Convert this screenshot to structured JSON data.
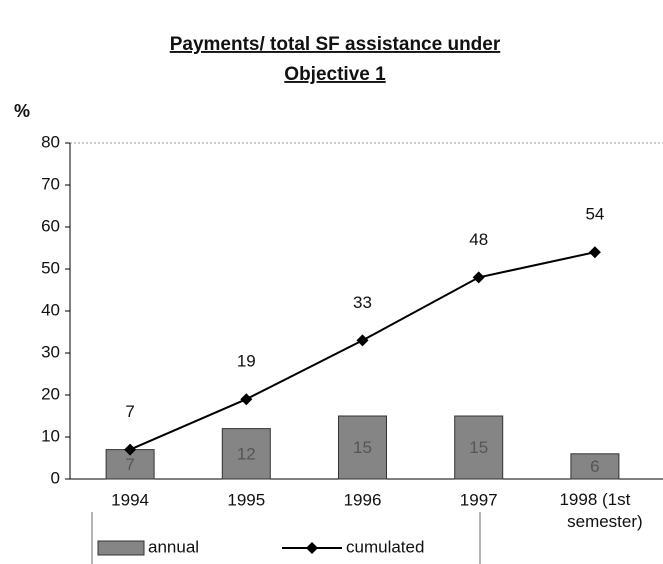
{
  "chart_data": {
    "type": "bar",
    "title_lines": [
      "Payments/ total SF assistance under",
      "Objective 1"
    ],
    "y_label": "%",
    "categories": [
      "1994",
      "1995",
      "1996",
      "1997",
      "1998 (1st semester)"
    ],
    "series": [
      {
        "name": "annual",
        "type": "bar",
        "color": "#858585",
        "values": [
          7,
          12,
          15,
          15,
          6
        ]
      },
      {
        "name": "cumulated",
        "type": "line",
        "color": "#000000",
        "values": [
          7,
          19,
          33,
          48,
          54
        ]
      }
    ],
    "ylim": [
      0,
      80
    ],
    "yticks": [
      0,
      10,
      20,
      30,
      40,
      50,
      60,
      70,
      80
    ],
    "grid": false
  }
}
